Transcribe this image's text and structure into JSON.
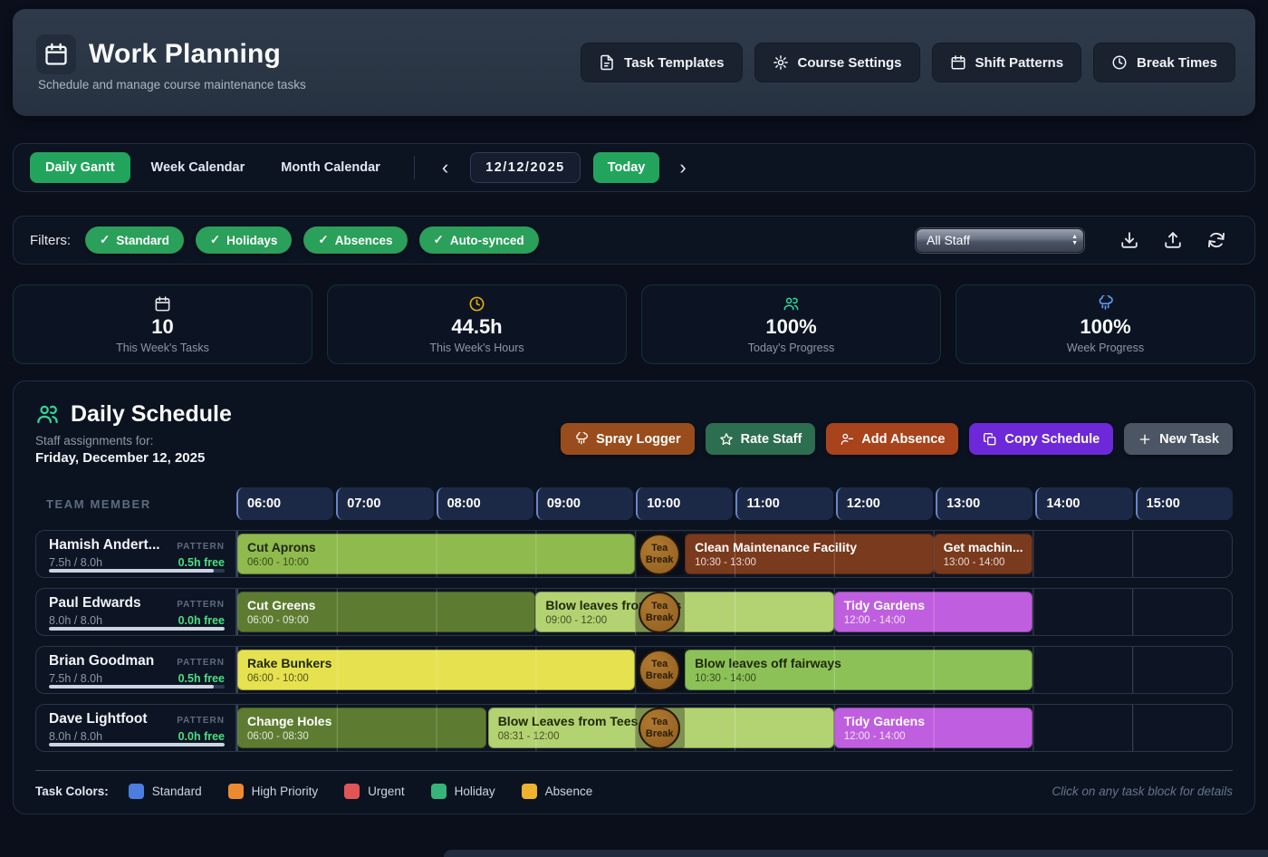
{
  "header": {
    "title": "Work Planning",
    "subtitle": "Schedule and manage course maintenance tasks",
    "buttons": [
      {
        "label": "Task Templates",
        "icon": "file-text-icon"
      },
      {
        "label": "Course Settings",
        "icon": "gear-icon"
      },
      {
        "label": "Shift Patterns",
        "icon": "calendar-icon"
      },
      {
        "label": "Break Times",
        "icon": "clock-icon"
      }
    ]
  },
  "toolbar": {
    "tabs": [
      {
        "label": "Daily Gantt",
        "active": true
      },
      {
        "label": "Week Calendar",
        "active": false
      },
      {
        "label": "Month Calendar",
        "active": false
      }
    ],
    "prev_label": "‹",
    "next_label": "›",
    "date_value": "12/12/2025",
    "today_label": "Today"
  },
  "filters": {
    "label": "Filters:",
    "check_glyph": "✓",
    "pills": [
      "Standard",
      "Holidays",
      "Absences",
      "Auto-synced"
    ],
    "staff_select_value": "All Staff",
    "tool_icons": [
      "download-icon",
      "upload-icon",
      "refresh-icon"
    ]
  },
  "stats": [
    {
      "icon": "calendar-icon",
      "icon_color": "#e5e7eb",
      "value": "10",
      "label": "This Week's Tasks"
    },
    {
      "icon": "clock-icon",
      "icon_color": "#eab308",
      "value": "44.5h",
      "label": "This Week's Hours"
    },
    {
      "icon": "users-icon",
      "icon_color": "#34d399",
      "value": "100%",
      "label": "Today's Progress"
    },
    {
      "icon": "cloud-rain-icon",
      "icon_color": "#60a5fa",
      "value": "100%",
      "label": "Week Progress"
    }
  ],
  "schedule": {
    "title": "Daily Schedule",
    "subtitle_line1": "Staff assignments for:",
    "subtitle_line2": "Friday, December 12, 2025",
    "actions": [
      {
        "label": "Spray Logger",
        "icon": "cloud-rain-icon",
        "bg": "#9a4d1c"
      },
      {
        "label": "Rate Staff",
        "icon": "star-icon",
        "bg": "#2c6e4f"
      },
      {
        "label": "Add Absence",
        "icon": "person-minus-icon",
        "bg": "#a8431c"
      },
      {
        "label": "Copy Schedule",
        "icon": "copy-icon",
        "bg": "#6d28d9"
      },
      {
        "label": "New Task",
        "icon": "plus-icon",
        "bg": "#4b5563"
      }
    ],
    "team_member_label": "TEAM MEMBER",
    "time_slots": [
      "06:00",
      "07:00",
      "08:00",
      "09:00",
      "10:00",
      "11:00",
      "12:00",
      "13:00",
      "14:00",
      "15:00"
    ],
    "timeline_start_hour": 6,
    "timeline_hours": 10,
    "break_label_lines": [
      "Tea",
      "Break"
    ],
    "rows": [
      {
        "name": "Hamish Andert...",
        "pattern_label": "PATTERN",
        "hours": "7.5h / 8.0h",
        "free": "0.5h free",
        "progress_pct": 94,
        "tasks": [
          {
            "title": "Cut Aprons",
            "time": "06:00 - 10:00",
            "start": 6,
            "end": 10,
            "bg": "#8fba4d",
            "text": "dark"
          },
          {
            "title": "Clean Maintenance Facility",
            "time": "10:30 - 13:00",
            "start": 10.5,
            "end": 13,
            "bg": "#7a3a1d",
            "text": "light"
          },
          {
            "title": "Get machin...",
            "time": "13:00 - 14:00",
            "start": 13,
            "end": 14,
            "bg": "#7a3a1d",
            "text": "light"
          }
        ],
        "break": {
          "start": 10,
          "end": 10.5
        }
      },
      {
        "name": "Paul Edwards",
        "pattern_label": "PATTERN",
        "hours": "8.0h / 8.0h",
        "free": "0.0h free",
        "progress_pct": 100,
        "tasks": [
          {
            "title": "Cut Greens",
            "time": "06:00 - 09:00",
            "start": 6,
            "end": 9,
            "bg": "#5d7c31",
            "text": "light"
          },
          {
            "title": "Blow leaves from Tees",
            "time": "09:00 - 12:00",
            "start": 9,
            "end": 12,
            "bg": "#b3d271",
            "text": "dark"
          },
          {
            "title": "Tidy Gardens",
            "time": "12:00 - 14:00",
            "start": 12,
            "end": 14,
            "bg": "#bf5fdf",
            "text": "light"
          }
        ],
        "break": {
          "start": 10,
          "end": 10.5
        }
      },
      {
        "name": "Brian Goodman",
        "pattern_label": "PATTERN",
        "hours": "7.5h / 8.0h",
        "free": "0.5h free",
        "progress_pct": 94,
        "tasks": [
          {
            "title": "Rake Bunkers",
            "time": "06:00 - 10:00",
            "start": 6,
            "end": 10,
            "bg": "#e6e14f",
            "text": "dark"
          },
          {
            "title": "Blow leaves off fairways",
            "time": "10:30 - 14:00",
            "start": 10.5,
            "end": 14,
            "bg": "#8cc158",
            "text": "dark"
          }
        ],
        "break": {
          "start": 10,
          "end": 10.5
        }
      },
      {
        "name": "Dave Lightfoot",
        "pattern_label": "PATTERN",
        "hours": "8.0h / 8.0h",
        "free": "0.0h free",
        "progress_pct": 100,
        "tasks": [
          {
            "title": "Change Holes",
            "time": "06:00 - 08:30",
            "start": 6,
            "end": 8.5,
            "bg": "#5d7c31",
            "text": "light"
          },
          {
            "title": "Blow Leaves from Tees",
            "time": "08:31 - 12:00",
            "start": 8.52,
            "end": 12,
            "bg": "#b3d271",
            "text": "dark"
          },
          {
            "title": "Tidy Gardens",
            "time": "12:00 - 14:00",
            "start": 12,
            "end": 14,
            "bg": "#bf5fdf",
            "text": "light"
          }
        ],
        "break": {
          "start": 10,
          "end": 10.5
        }
      }
    ],
    "legend": {
      "label": "Task Colors:",
      "items": [
        {
          "label": "Standard",
          "color": "#4c7de0"
        },
        {
          "label": "High Priority",
          "color": "#ed8a2f"
        },
        {
          "label": "Urgent",
          "color": "#e25555"
        },
        {
          "label": "Holiday",
          "color": "#37b578"
        },
        {
          "label": "Absence",
          "color": "#eeb22f"
        }
      ],
      "hint": "Click on any task block for details"
    }
  }
}
